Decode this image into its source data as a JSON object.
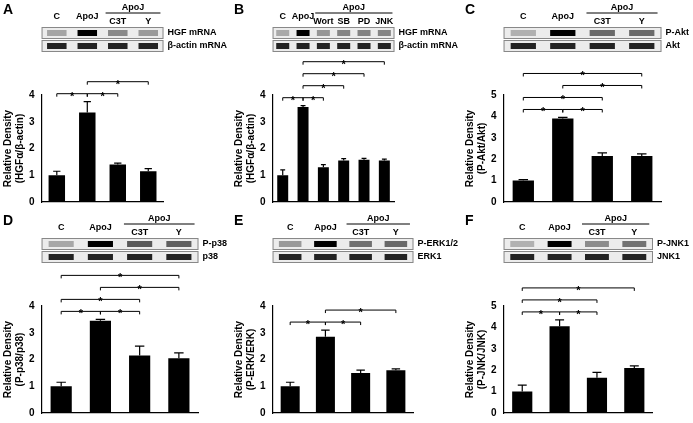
{
  "chart_data": [
    {
      "type": "bar",
      "panel": "A",
      "color": "#000000",
      "categories": [
        "C",
        "ApoJ",
        "C3T",
        "Y"
      ],
      "groups": [
        {
          "label": "ApoJ",
          "span": [
            2,
            3
          ]
        }
      ],
      "blot_rows": [
        "HGF mRNA",
        "β-actin mRNA"
      ],
      "values": [
        1.0,
        3.35,
        1.4,
        1.15
      ],
      "errors": [
        0.15,
        0.4,
        0.05,
        0.1
      ],
      "ylabel": [
        "Relative Density",
        "(HGFα/β-actin)"
      ],
      "ylim": [
        0,
        4
      ],
      "yticks": [
        0,
        1,
        2,
        3,
        4
      ],
      "tick_labels": "y",
      "grid": false,
      "significance": [
        {
          "pair": [
            0,
            1
          ],
          "label": "*"
        },
        {
          "pair": [
            1,
            2
          ],
          "label": "*"
        },
        {
          "pair": [
            1,
            3
          ],
          "label": "*"
        }
      ]
    },
    {
      "type": "bar",
      "panel": "B",
      "color": "#000000",
      "categories": [
        "C",
        "ApoJ",
        "Wort",
        "SB",
        "PD",
        "JNK"
      ],
      "groups": [
        {
          "label": "ApoJ",
          "span": [
            2,
            5
          ]
        }
      ],
      "blot_rows": [
        "HGF mRNA",
        "β-actin mRNA"
      ],
      "values": [
        1.0,
        3.55,
        1.3,
        1.55,
        1.58,
        1.55
      ],
      "errors": [
        0.2,
        0.05,
        0.1,
        0.07,
        0.05,
        0.05
      ],
      "ylabel": [
        "Relative Density",
        "(HGFα/β-actin)"
      ],
      "ylim": [
        0,
        4
      ],
      "yticks": [
        0,
        1,
        2,
        3,
        4
      ],
      "tick_labels": "y",
      "grid": false,
      "significance": [
        {
          "pair": [
            0,
            1
          ],
          "label": "*"
        },
        {
          "pair": [
            1,
            2
          ],
          "label": "*"
        },
        {
          "pair": [
            1,
            3
          ],
          "label": "*"
        },
        {
          "pair": [
            1,
            4
          ],
          "label": "*"
        },
        {
          "pair": [
            1,
            5
          ],
          "label": "*"
        }
      ]
    },
    {
      "type": "bar",
      "panel": "C",
      "color": "#000000",
      "categories": [
        "C",
        "ApoJ",
        "C3T",
        "Y"
      ],
      "groups": [
        {
          "label": "ApoJ",
          "span": [
            2,
            3
          ]
        }
      ],
      "blot_rows": [
        "P-Akt",
        "Akt"
      ],
      "values": [
        1.0,
        3.9,
        2.15,
        2.15
      ],
      "errors": [
        0.05,
        0.05,
        0.15,
        0.1
      ],
      "ylabel": [
        "Relative Density",
        "(P-Akt/Akt)"
      ],
      "ylim": [
        0,
        5
      ],
      "yticks": [
        0,
        1,
        2,
        3,
        4,
        5
      ],
      "tick_labels": "y",
      "grid": false,
      "significance": [
        {
          "pair": [
            0,
            1
          ],
          "label": "*"
        },
        {
          "pair": [
            1,
            2
          ],
          "label": "*"
        },
        {
          "pair": [
            1,
            3
          ],
          "label": "*"
        },
        {
          "pair": [
            0,
            2
          ],
          "label": "*"
        },
        {
          "pair": [
            0,
            3
          ],
          "label": "*"
        }
      ]
    },
    {
      "type": "bar",
      "panel": "D",
      "color": "#000000",
      "categories": [
        "C",
        "ApoJ",
        "C3T",
        "Y"
      ],
      "groups": [
        {
          "label": "ApoJ",
          "span": [
            2,
            3
          ]
        }
      ],
      "blot_rows": [
        "P-p38",
        "p38"
      ],
      "values": [
        1.0,
        3.45,
        2.15,
        2.05
      ],
      "errors": [
        0.15,
        0.05,
        0.35,
        0.2
      ],
      "ylabel": [
        "Relative Density",
        "(P-p38/p38)"
      ],
      "ylim": [
        0,
        4
      ],
      "yticks": [
        0,
        1,
        2,
        3,
        4
      ],
      "tick_labels": "y",
      "grid": false,
      "significance": [
        {
          "pair": [
            0,
            1
          ],
          "label": "*"
        },
        {
          "pair": [
            1,
            2
          ],
          "label": "*"
        },
        {
          "pair": [
            1,
            3
          ],
          "label": "*"
        },
        {
          "pair": [
            0,
            2
          ],
          "label": "*"
        },
        {
          "pair": [
            0,
            3
          ],
          "label": "*"
        }
      ]
    },
    {
      "type": "bar",
      "panel": "E",
      "color": "#000000",
      "categories": [
        "C",
        "ApoJ",
        "C3T",
        "Y"
      ],
      "groups": [
        {
          "label": "ApoJ",
          "span": [
            2,
            3
          ]
        }
      ],
      "blot_rows": [
        "P-ERK1/2",
        "ERK1"
      ],
      "values": [
        1.0,
        2.85,
        1.5,
        1.6
      ],
      "errors": [
        0.15,
        0.25,
        0.1,
        0.05
      ],
      "ylabel": [
        "Relative Density",
        "(P-ERK/ERK)"
      ],
      "ylim": [
        0,
        4
      ],
      "yticks": [
        0,
        1,
        2,
        3,
        4
      ],
      "tick_labels": "y",
      "grid": false,
      "significance": [
        {
          "pair": [
            0,
            1
          ],
          "label": "*"
        },
        {
          "pair": [
            1,
            2
          ],
          "label": "*"
        },
        {
          "pair": [
            1,
            3
          ],
          "label": "*"
        }
      ]
    },
    {
      "type": "bar",
      "panel": "F",
      "color": "#000000",
      "categories": [
        "C",
        "ApoJ",
        "C3T",
        "Y"
      ],
      "groups": [
        {
          "label": "ApoJ",
          "span": [
            2,
            3
          ]
        }
      ],
      "blot_rows": [
        "P-JNK1",
        "JNK1"
      ],
      "values": [
        1.0,
        4.05,
        1.65,
        2.1
      ],
      "errors": [
        0.3,
        0.3,
        0.25,
        0.1
      ],
      "ylabel": [
        "Relative Density",
        "(P-JNK/JNK)"
      ],
      "ylim": [
        0,
        5
      ],
      "yticks": [
        0,
        1,
        2,
        3,
        4,
        5
      ],
      "tick_labels": "y",
      "grid": false,
      "significance": [
        {
          "pair": [
            0,
            1
          ],
          "label": "*"
        },
        {
          "pair": [
            1,
            2
          ],
          "label": "*"
        },
        {
          "pair": [
            0,
            2
          ],
          "label": "*"
        },
        {
          "pair": [
            0,
            3
          ],
          "label": "*"
        }
      ]
    }
  ]
}
